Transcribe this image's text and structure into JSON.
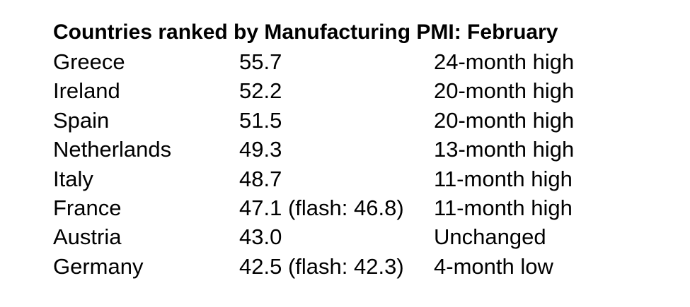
{
  "title": "Countries ranked by Manufacturing PMI: February",
  "table": {
    "rows": [
      [
        "Greece",
        "55.7",
        "24-month high"
      ],
      [
        "Ireland",
        "52.2",
        "20-month high"
      ],
      [
        "Spain",
        "51.5",
        "20-month high"
      ],
      [
        "Netherlands",
        "49.3",
        "13-month high"
      ],
      [
        "Italy",
        "48.7",
        "11-month high"
      ],
      [
        "France",
        "47.1 (flash: 46.8)",
        "11-month high"
      ],
      [
        "Austria",
        "43.0",
        "Unchanged"
      ],
      [
        "Germany",
        "42.5 (flash: 42.3)",
        "4-month low"
      ]
    ]
  }
}
